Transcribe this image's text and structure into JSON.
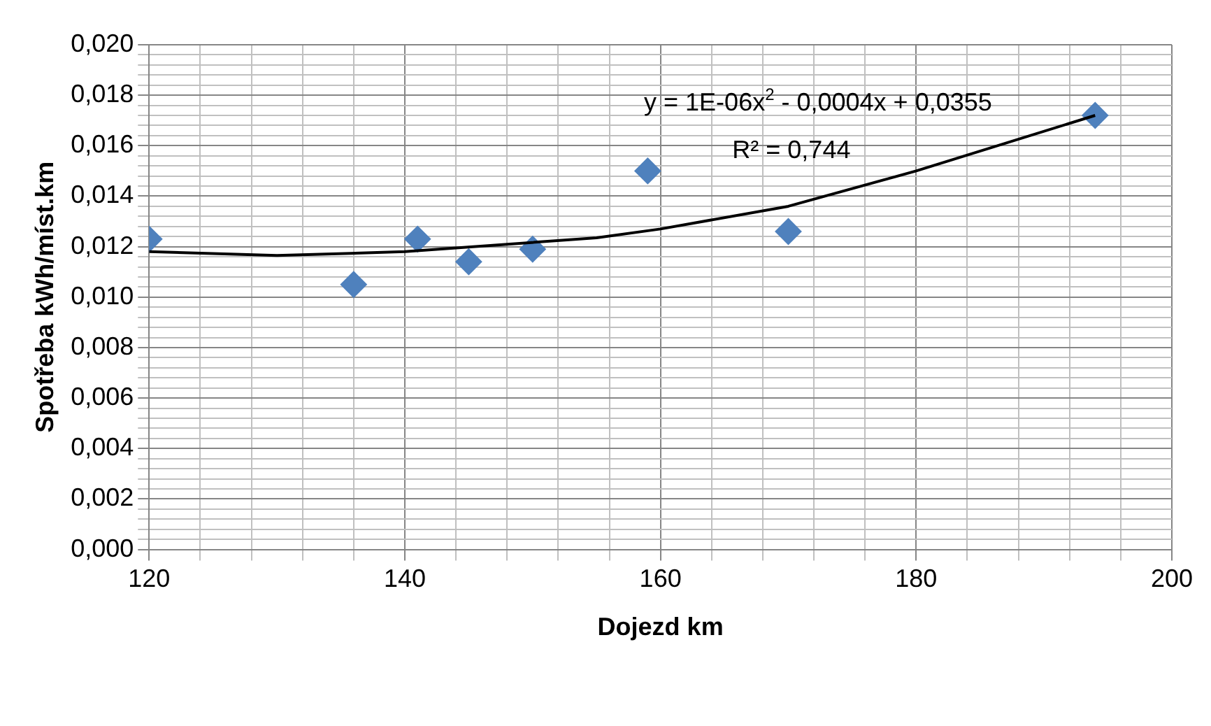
{
  "chart_data": {
    "type": "scatter",
    "xlabel": "Dojezd km",
    "ylabel": "Spotřeba kWh/míst.km",
    "marker": "diamond",
    "grid": true,
    "legend": false,
    "xlim": [
      120,
      200
    ],
    "xticks": [
      120,
      {
        "value": 124,
        "label": null
      },
      {
        "value": 128,
        "label": null
      },
      {
        "value": 132,
        "label": null
      },
      {
        "value": 136,
        "label": null
      },
      140,
      {
        "value": 144,
        "label": null
      },
      {
        "value": 148,
        "label": null
      },
      {
        "value": 152,
        "label": null
      },
      {
        "value": 156,
        "label": null
      },
      160,
      {
        "value": 164,
        "label": null
      },
      {
        "value": 168,
        "label": null
      },
      {
        "value": 172,
        "label": null
      },
      {
        "value": 176,
        "label": null
      },
      180,
      {
        "value": 184,
        "label": null
      },
      {
        "value": 188,
        "label": null
      },
      {
        "value": 192,
        "label": null
      },
      {
        "value": 196,
        "label": null
      },
      200
    ],
    "ylim": [
      0,
      0.02
    ],
    "yticks": [
      {
        "value": 0,
        "label": "0,000"
      },
      {
        "value": 0.0004,
        "label": null
      },
      {
        "value": 0.0008,
        "label": null
      },
      {
        "value": 0.0012,
        "label": null
      },
      {
        "value": 0.0016,
        "label": null
      },
      {
        "value": 0.002,
        "label": "0,002"
      },
      {
        "value": 0.0024,
        "label": null
      },
      {
        "value": 0.0028,
        "label": null
      },
      {
        "value": 0.0032,
        "label": null
      },
      {
        "value": 0.0036,
        "label": null
      },
      {
        "value": 0.004,
        "label": "0,004"
      },
      {
        "value": 0.0044,
        "label": null
      },
      {
        "value": 0.0048,
        "label": null
      },
      {
        "value": 0.0052,
        "label": null
      },
      {
        "value": 0.0056,
        "label": null
      },
      {
        "value": 0.006,
        "label": "0,006"
      },
      {
        "value": 0.0064,
        "label": null
      },
      {
        "value": 0.0068,
        "label": null
      },
      {
        "value": 0.0072,
        "label": null
      },
      {
        "value": 0.0076,
        "label": null
      },
      {
        "value": 0.008,
        "label": "0,008"
      },
      {
        "value": 0.0084,
        "label": null
      },
      {
        "value": 0.0088,
        "label": null
      },
      {
        "value": 0.0092,
        "label": null
      },
      {
        "value": 0.0096,
        "label": null
      },
      {
        "value": 0.01,
        "label": "0,010"
      },
      {
        "value": 0.0104,
        "label": null
      },
      {
        "value": 0.0108,
        "label": null
      },
      {
        "value": 0.0112,
        "label": null
      },
      {
        "value": 0.0116,
        "label": null
      },
      {
        "value": 0.012,
        "label": "0,012"
      },
      {
        "value": 0.0124,
        "label": null
      },
      {
        "value": 0.0128,
        "label": null
      },
      {
        "value": 0.0132,
        "label": null
      },
      {
        "value": 0.0136,
        "label": null
      },
      {
        "value": 0.014,
        "label": "0,014"
      },
      {
        "value": 0.0144,
        "label": null
      },
      {
        "value": 0.0148,
        "label": null
      },
      {
        "value": 0.0152,
        "label": null
      },
      {
        "value": 0.0156,
        "label": null
      },
      {
        "value": 0.016,
        "label": "0,016"
      },
      {
        "value": 0.0164,
        "label": null
      },
      {
        "value": 0.0168,
        "label": null
      },
      {
        "value": 0.0172,
        "label": null
      },
      {
        "value": 0.0176,
        "label": null
      },
      {
        "value": 0.018,
        "label": "0,018"
      },
      {
        "value": 0.0184,
        "label": null
      },
      {
        "value": 0.0188,
        "label": null
      },
      {
        "value": 0.0192,
        "label": null
      },
      {
        "value": 0.0196,
        "label": null
      },
      {
        "value": 0.02,
        "label": "0,020"
      }
    ],
    "series": [
      {
        "color": "#4f81bd",
        "x": [
          120,
          136,
          141,
          145,
          150,
          159,
          170,
          194
        ],
        "values": [
          0.0123,
          0.0105,
          0.0123,
          0.0114,
          0.0119,
          0.015,
          0.0126,
          0.0172
        ]
      },
      {
        "type": "line",
        "color": "#000000",
        "marker": "none",
        "x": [
          120,
          130,
          140,
          155,
          160,
          170,
          180,
          194
        ],
        "values": [
          0.0118,
          0.01165,
          0.0118,
          0.01235,
          0.0127,
          0.0136,
          0.015,
          0.0172
        ]
      }
    ],
    "annotations": [
      "y = 1E-06x$^{2}$ - 0,0004x + 0,0355",
      "R² = 0,744"
    ]
  }
}
